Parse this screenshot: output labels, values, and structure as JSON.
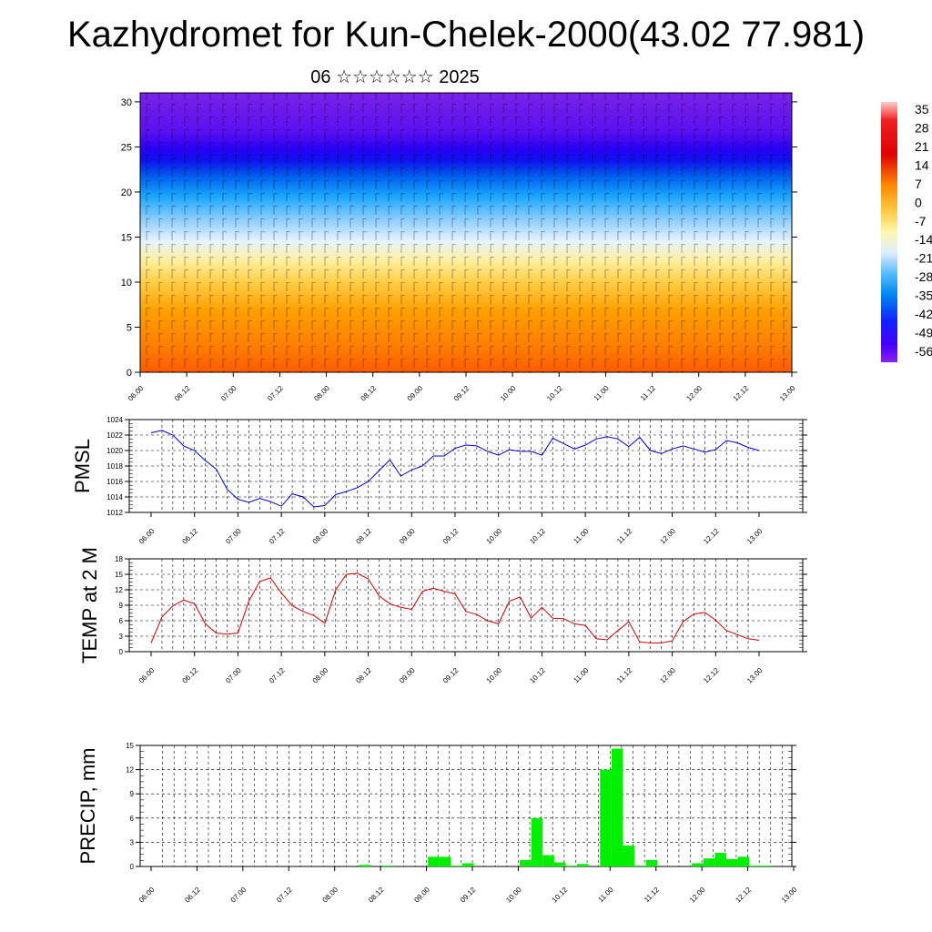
{
  "title": "Kazhydromet for Kun-Chelek-2000(43.02 77.981)",
  "subtitle": "06 ☆☆☆☆☆☆ 2025",
  "colors": {
    "pmsl": "#0000cc",
    "temp": "#cc0000",
    "precip": "#00ee00"
  },
  "time_labels": [
    "06.00",
    "06.12",
    "07.00",
    "07.12",
    "08.00",
    "08.12",
    "09.00",
    "09.12",
    "10.00",
    "10.12",
    "11.00",
    "11.12",
    "12.00",
    "12.12",
    "13.00"
  ],
  "chart_data": [
    {
      "type": "heatmap",
      "description_axes": "height vs time, wind barbs overlay",
      "ylim": [
        0,
        31
      ],
      "yticks": [
        0,
        5,
        10,
        15,
        20,
        25,
        30
      ],
      "colorbar_labels": [
        "35",
        "28",
        "21",
        "14",
        "7",
        "0",
        "-7",
        "-14",
        "-21",
        "-28",
        "-35",
        "-42",
        "-49",
        "-56"
      ],
      "colorbar_stops": [
        "#ff0000",
        "#ee1010",
        "#ff4400",
        "#ff8800",
        "#ffaa00",
        "#ffcc33",
        "#ffee88",
        "#ddeeff",
        "#88ccff",
        "#00aaff",
        "#0077ee",
        "#0033ff",
        "#3300ff",
        "#7700ee"
      ]
    },
    {
      "type": "line",
      "ylabel": "PMSL",
      "ylim": [
        1012,
        1024
      ],
      "yticks": [
        1012,
        1014,
        1016,
        1018,
        1020,
        1022,
        1024
      ],
      "values": [
        1022.3,
        1022.6,
        1022.0,
        1020.6,
        1020.0,
        1018.7,
        1017.6,
        1015.0,
        1013.7,
        1013.3,
        1013.8,
        1013.4,
        1012.8,
        1014.4,
        1014.0,
        1012.7,
        1012.9,
        1014.3,
        1014.7,
        1015.2,
        1016.0,
        1017.4,
        1018.8,
        1016.7,
        1017.5,
        1018.0,
        1019.3,
        1019.3,
        1020.3,
        1020.7,
        1020.6,
        1019.9,
        1019.4,
        1020.1,
        1019.9,
        1019.9,
        1019.4,
        1021.6,
        1020.9,
        1020.2,
        1020.7,
        1021.5,
        1021.8,
        1021.5,
        1020.5,
        1021.7,
        1020.0,
        1019.6,
        1020.2,
        1020.6,
        1020.2,
        1019.8,
        1020.1,
        1021.3,
        1021.0,
        1020.4,
        1020.0
      ]
    },
    {
      "type": "line",
      "ylabel": "TEMP at 2 M",
      "ylim": [
        0,
        18
      ],
      "yticks": [
        0,
        3,
        6,
        9,
        12,
        15,
        18
      ],
      "values": [
        1.7,
        6.7,
        8.9,
        10.0,
        9.3,
        5.4,
        3.6,
        3.4,
        3.6,
        9.8,
        13.6,
        14.3,
        11.4,
        8.9,
        7.8,
        7.0,
        5.5,
        12.0,
        15.0,
        15.2,
        14.1,
        10.8,
        9.3,
        8.6,
        8.2,
        11.7,
        12.3,
        11.7,
        11.2,
        7.8,
        7.2,
        6.0,
        5.4,
        9.8,
        10.6,
        6.5,
        8.6,
        6.5,
        6.4,
        5.4,
        5.1,
        2.5,
        2.3,
        4.1,
        5.8,
        1.9,
        1.7,
        1.7,
        2.1,
        5.8,
        7.3,
        7.6,
        6.1,
        4.1,
        3.3,
        2.5,
        2.2
      ]
    },
    {
      "type": "bar",
      "ylabel": "PRECIP, mm",
      "ylim": [
        0,
        15
      ],
      "yticks": [
        0,
        3,
        6,
        9,
        12,
        15
      ],
      "values": [
        0,
        0,
        0,
        0,
        0,
        0,
        0,
        0,
        0,
        0,
        0,
        0,
        0,
        0,
        0,
        0,
        0,
        0,
        0,
        0.2,
        0,
        0.1,
        0,
        0,
        0,
        1.2,
        1.2,
        0.1,
        0.4,
        0,
        0,
        0,
        0,
        0.8,
        6.0,
        1.4,
        0.5,
        0.1,
        0.3,
        0,
        12.0,
        14.6,
        2.6,
        0.1,
        0.8,
        0,
        0,
        0,
        0.4,
        1.0,
        1.7,
        0.9,
        1.2,
        0.1,
        0.1,
        0
      ]
    }
  ]
}
